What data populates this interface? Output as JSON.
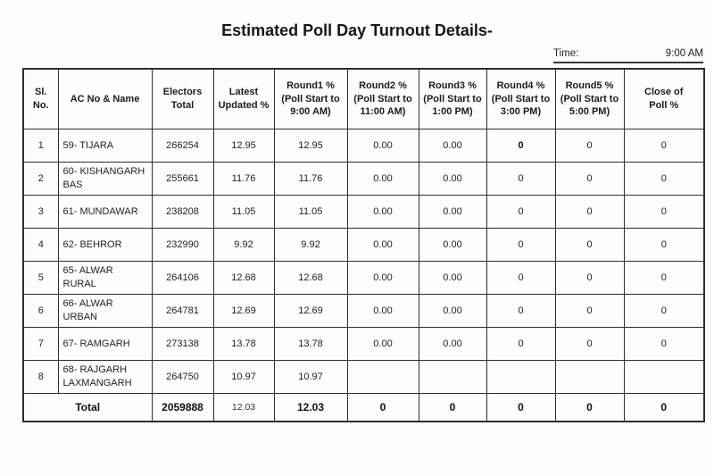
{
  "title": "Estimated Poll Day Turnout Details-",
  "time": {
    "label": "Time:",
    "value": "9:00 AM"
  },
  "table": {
    "headers": [
      "Sl. No.",
      "AC No & Name",
      "Electors\nTotal",
      "Latest\nUpdated %",
      "Round1 %\n(Poll Start to\n9:00 AM)",
      "Round2 %\n(Poll Start to\n11:00 AM)",
      "Round3 %\n(Poll Start to\n1:00 PM)",
      "Round4 %\n(Poll Start to\n3:00 PM)",
      "Round5 %\n(Poll Start to\n5:00 PM)",
      "Close of\nPoll %"
    ],
    "rows": [
      [
        "1",
        "59- TIJARA",
        "266254",
        "12.95",
        "12.95",
        "0.00",
        "0.00",
        "0",
        "0",
        "0"
      ],
      [
        "2",
        "60- KISHANGARH\nBAS",
        "255661",
        "11.76",
        "11.76",
        "0.00",
        "0.00",
        "0",
        "0",
        "0"
      ],
      [
        "3",
        "61- MUNDAWAR",
        "238208",
        "11.05",
        "11.05",
        "0.00",
        "0.00",
        "0",
        "0",
        "0"
      ],
      [
        "4",
        "62- BEHROR",
        "232990",
        "9.92",
        "9.92",
        "0.00",
        "0.00",
        "0",
        "0",
        "0"
      ],
      [
        "5",
        "65- ALWAR RURAL",
        "264106",
        "12.68",
        "12.68",
        "0.00",
        "0.00",
        "0",
        "0",
        "0"
      ],
      [
        "6",
        "66- ALWAR URBAN",
        "264781",
        "12.69",
        "12.69",
        "0.00",
        "0.00",
        "0",
        "0",
        "0"
      ],
      [
        "7",
        "67- RAMGARH",
        "273138",
        "13.78",
        "13.78",
        "0.00",
        "0.00",
        "0",
        "0",
        "0"
      ],
      [
        "8",
        "68- RAJGARH\nLAXMANGARH",
        "264750",
        "10.97",
        "10.97",
        "",
        "",
        "",
        "",
        ""
      ]
    ],
    "bold_cells": [
      [
        0,
        7
      ]
    ],
    "total_row": {
      "label": "Total",
      "values": [
        "2059888",
        "12.03",
        "12.03",
        "0",
        "0",
        "0",
        "0",
        "0"
      ],
      "regular_value_indexes": [
        1
      ]
    }
  }
}
